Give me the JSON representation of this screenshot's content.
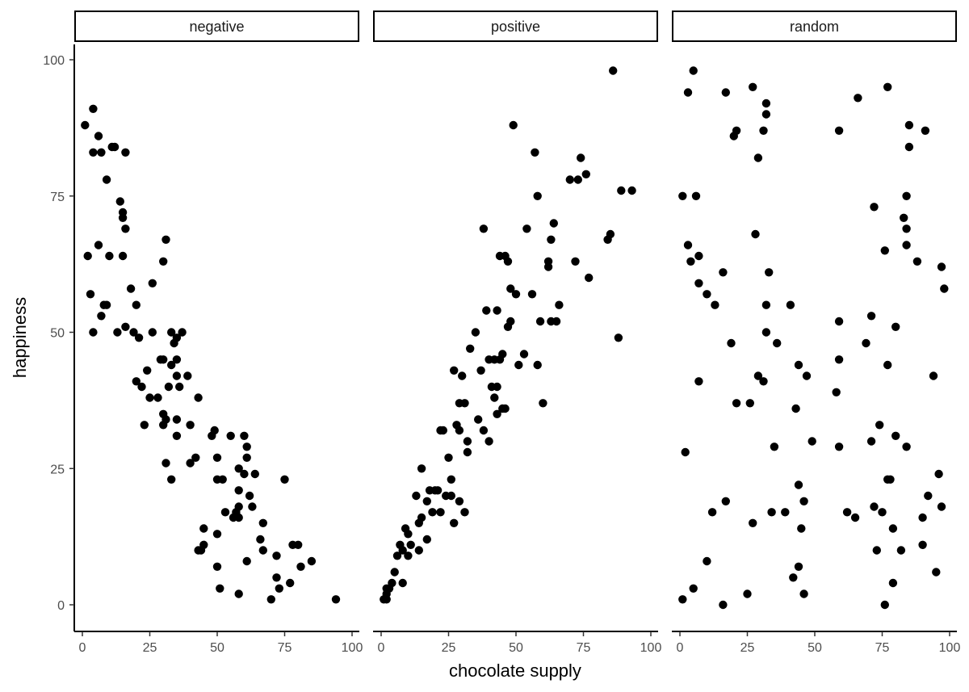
{
  "chart_data": {
    "type": "scatter",
    "xlabel": "chocolate supply",
    "ylabel": "happiness",
    "xlim": [
      0,
      100
    ],
    "ylim": [
      0,
      100
    ],
    "x_ticks": [
      0,
      25,
      50,
      75,
      100
    ],
    "y_ticks": [
      0,
      25,
      50,
      75,
      100
    ],
    "grid": false,
    "point_color": "#000000",
    "panels": [
      {
        "facet": "negative",
        "points": [
          [
            1,
            88
          ],
          [
            2,
            64
          ],
          [
            3,
            57
          ],
          [
            4,
            91
          ],
          [
            4,
            83
          ],
          [
            4,
            50
          ],
          [
            6,
            86
          ],
          [
            6,
            66
          ],
          [
            7,
            83
          ],
          [
            7,
            53
          ],
          [
            8,
            55
          ],
          [
            9,
            55
          ],
          [
            9,
            78
          ],
          [
            10,
            64
          ],
          [
            11,
            84
          ],
          [
            12,
            84
          ],
          [
            13,
            50
          ],
          [
            14,
            74
          ],
          [
            15,
            72
          ],
          [
            15,
            71
          ],
          [
            15,
            64
          ],
          [
            16,
            69
          ],
          [
            16,
            83
          ],
          [
            16,
            51
          ],
          [
            18,
            58
          ],
          [
            19,
            50
          ],
          [
            20,
            55
          ],
          [
            21,
            49
          ],
          [
            20,
            41
          ],
          [
            22,
            40
          ],
          [
            23,
            33
          ],
          [
            24,
            43
          ],
          [
            25,
            38
          ],
          [
            26,
            59
          ],
          [
            26,
            50
          ],
          [
            28,
            38
          ],
          [
            29,
            45
          ],
          [
            30,
            45
          ],
          [
            30,
            35
          ],
          [
            30,
            33
          ],
          [
            31,
            34
          ],
          [
            31,
            67
          ],
          [
            30,
            63
          ],
          [
            31,
            26
          ],
          [
            32,
            40
          ],
          [
            33,
            23
          ],
          [
            33,
            44
          ],
          [
            33,
            50
          ],
          [
            34,
            48
          ],
          [
            35,
            49
          ],
          [
            35,
            45
          ],
          [
            35,
            42
          ],
          [
            35,
            34
          ],
          [
            35,
            31
          ],
          [
            37,
            50
          ],
          [
            36,
            40
          ],
          [
            39,
            42
          ],
          [
            40,
            33
          ],
          [
            40,
            26
          ],
          [
            42,
            27
          ],
          [
            43,
            38
          ],
          [
            43,
            10
          ],
          [
            44,
            10
          ],
          [
            45,
            14
          ],
          [
            45,
            11
          ],
          [
            48,
            31
          ],
          [
            49,
            32
          ],
          [
            50,
            27
          ],
          [
            50,
            23
          ],
          [
            50,
            13
          ],
          [
            50,
            7
          ],
          [
            51,
            3
          ],
          [
            52,
            23
          ],
          [
            53,
            17
          ],
          [
            55,
            31
          ],
          [
            56,
            16
          ],
          [
            57,
            17
          ],
          [
            58,
            25
          ],
          [
            58,
            21
          ],
          [
            58,
            18
          ],
          [
            58,
            16
          ],
          [
            58,
            2
          ],
          [
            60,
            31
          ],
          [
            60,
            24
          ],
          [
            61,
            29
          ],
          [
            61,
            27
          ],
          [
            61,
            8
          ],
          [
            62,
            20
          ],
          [
            63,
            18
          ],
          [
            64,
            24
          ],
          [
            66,
            12
          ],
          [
            67,
            15
          ],
          [
            67,
            10
          ],
          [
            70,
            1
          ],
          [
            72,
            9
          ],
          [
            72,
            5
          ],
          [
            73,
            3
          ],
          [
            75,
            23
          ],
          [
            77,
            4
          ],
          [
            78,
            11
          ],
          [
            80,
            11
          ],
          [
            81,
            7
          ],
          [
            85,
            8
          ],
          [
            94,
            1
          ]
        ]
      },
      {
        "facet": "positive",
        "points": [
          [
            1,
            1
          ],
          [
            2,
            1
          ],
          [
            2,
            2
          ],
          [
            2,
            3
          ],
          [
            3,
            3
          ],
          [
            4,
            4
          ],
          [
            5,
            6
          ],
          [
            6,
            9
          ],
          [
            7,
            11
          ],
          [
            8,
            10
          ],
          [
            8,
            4
          ],
          [
            9,
            14
          ],
          [
            10,
            13
          ],
          [
            10,
            9
          ],
          [
            11,
            11
          ],
          [
            13,
            20
          ],
          [
            14,
            10
          ],
          [
            14,
            15
          ],
          [
            15,
            25
          ],
          [
            15,
            16
          ],
          [
            17,
            12
          ],
          [
            17,
            19
          ],
          [
            18,
            21
          ],
          [
            19,
            17
          ],
          [
            20,
            21
          ],
          [
            21,
            21
          ],
          [
            22,
            17
          ],
          [
            22,
            32
          ],
          [
            23,
            32
          ],
          [
            24,
            20
          ],
          [
            25,
            27
          ],
          [
            26,
            23
          ],
          [
            26,
            20
          ],
          [
            27,
            15
          ],
          [
            27,
            43
          ],
          [
            28,
            33
          ],
          [
            29,
            32
          ],
          [
            29,
            37
          ],
          [
            29,
            19
          ],
          [
            30,
            42
          ],
          [
            31,
            37
          ],
          [
            31,
            17
          ],
          [
            32,
            30
          ],
          [
            32,
            28
          ],
          [
            33,
            47
          ],
          [
            35,
            50
          ],
          [
            36,
            34
          ],
          [
            37,
            43
          ],
          [
            38,
            69
          ],
          [
            38,
            32
          ],
          [
            39,
            54
          ],
          [
            40,
            45
          ],
          [
            40,
            30
          ],
          [
            41,
            40
          ],
          [
            42,
            45
          ],
          [
            42,
            38
          ],
          [
            43,
            54
          ],
          [
            43,
            40
          ],
          [
            43,
            35
          ],
          [
            44,
            64
          ],
          [
            44,
            45
          ],
          [
            45,
            46
          ],
          [
            45,
            36
          ],
          [
            46,
            64
          ],
          [
            46,
            36
          ],
          [
            47,
            63
          ],
          [
            47,
            51
          ],
          [
            48,
            58
          ],
          [
            48,
            52
          ],
          [
            49,
            88
          ],
          [
            50,
            57
          ],
          [
            51,
            44
          ],
          [
            53,
            46
          ],
          [
            54,
            69
          ],
          [
            56,
            57
          ],
          [
            57,
            83
          ],
          [
            58,
            75
          ],
          [
            58,
            44
          ],
          [
            59,
            52
          ],
          [
            60,
            37
          ],
          [
            62,
            63
          ],
          [
            62,
            62
          ],
          [
            63,
            67
          ],
          [
            63,
            52
          ],
          [
            64,
            70
          ],
          [
            65,
            52
          ],
          [
            66,
            55
          ],
          [
            70,
            78
          ],
          [
            72,
            63
          ],
          [
            73,
            78
          ],
          [
            74,
            82
          ],
          [
            76,
            79
          ],
          [
            77,
            60
          ],
          [
            84,
            67
          ],
          [
            85,
            68
          ],
          [
            86,
            98
          ],
          [
            88,
            49
          ],
          [
            89,
            76
          ],
          [
            93,
            76
          ]
        ]
      },
      {
        "facet": "random",
        "points": [
          [
            1,
            1
          ],
          [
            1,
            75
          ],
          [
            2,
            28
          ],
          [
            3,
            94
          ],
          [
            3,
            66
          ],
          [
            4,
            63
          ],
          [
            5,
            3
          ],
          [
            5,
            98
          ],
          [
            6,
            75
          ],
          [
            7,
            64
          ],
          [
            7,
            59
          ],
          [
            7,
            41
          ],
          [
            10,
            57
          ],
          [
            10,
            8
          ],
          [
            12,
            17
          ],
          [
            13,
            55
          ],
          [
            16,
            61
          ],
          [
            16,
            0
          ],
          [
            17,
            94
          ],
          [
            17,
            19
          ],
          [
            19,
            48
          ],
          [
            20,
            86
          ],
          [
            21,
            87
          ],
          [
            21,
            37
          ],
          [
            25,
            2
          ],
          [
            26,
            37
          ],
          [
            27,
            95
          ],
          [
            27,
            15
          ],
          [
            28,
            68
          ],
          [
            29,
            82
          ],
          [
            29,
            42
          ],
          [
            31,
            41
          ],
          [
            31,
            87
          ],
          [
            32,
            92
          ],
          [
            32,
            90
          ],
          [
            32,
            55
          ],
          [
            32,
            50
          ],
          [
            33,
            61
          ],
          [
            34,
            17
          ],
          [
            35,
            29
          ],
          [
            36,
            48
          ],
          [
            39,
            17
          ],
          [
            41,
            55
          ],
          [
            42,
            5
          ],
          [
            43,
            36
          ],
          [
            44,
            44
          ],
          [
            44,
            22
          ],
          [
            44,
            7
          ],
          [
            45,
            14
          ],
          [
            46,
            19
          ],
          [
            46,
            2
          ],
          [
            47,
            42
          ],
          [
            49,
            30
          ],
          [
            58,
            39
          ],
          [
            59,
            52
          ],
          [
            59,
            45
          ],
          [
            59,
            29
          ],
          [
            59,
            87
          ],
          [
            62,
            17
          ],
          [
            65,
            16
          ],
          [
            66,
            93
          ],
          [
            69,
            48
          ],
          [
            71,
            53
          ],
          [
            71,
            30
          ],
          [
            72,
            73
          ],
          [
            72,
            18
          ],
          [
            73,
            10
          ],
          [
            74,
            33
          ],
          [
            75,
            17
          ],
          [
            76,
            65
          ],
          [
            76,
            0
          ],
          [
            77,
            95
          ],
          [
            77,
            44
          ],
          [
            77,
            23
          ],
          [
            78,
            23
          ],
          [
            79,
            14
          ],
          [
            79,
            4
          ],
          [
            80,
            51
          ],
          [
            80,
            31
          ],
          [
            82,
            10
          ],
          [
            83,
            71
          ],
          [
            84,
            75
          ],
          [
            84,
            69
          ],
          [
            84,
            66
          ],
          [
            84,
            29
          ],
          [
            85,
            88
          ],
          [
            85,
            84
          ],
          [
            88,
            63
          ],
          [
            90,
            16
          ],
          [
            90,
            11
          ],
          [
            91,
            87
          ],
          [
            92,
            20
          ],
          [
            94,
            42
          ],
          [
            95,
            6
          ],
          [
            96,
            24
          ],
          [
            97,
            62
          ],
          [
            97,
            18
          ],
          [
            98,
            58
          ]
        ]
      }
    ]
  }
}
